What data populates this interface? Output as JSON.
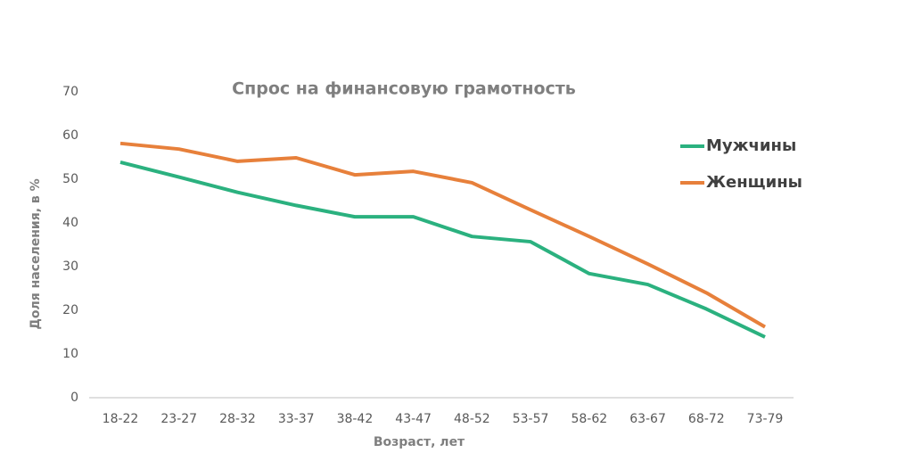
{
  "chart_data": {
    "type": "line",
    "title": "Спрос на финансовую грамотность",
    "x_label": "Возраст, лет",
    "y_label": "Доля населения, в %",
    "categories": [
      "18-22",
      "23-27",
      "28-32",
      "33-37",
      "38-42",
      "43-47",
      "48-52",
      "53-57",
      "58-62",
      "63-67",
      "68-72",
      "73-79"
    ],
    "series": [
      {
        "name": "Мужчины",
        "color": "#2bb17f",
        "values": [
          53.9,
          50.5,
          47,
          44,
          41.4,
          41.4,
          36.9,
          35.7,
          28.4,
          25.9,
          20.3,
          13.9
        ]
      },
      {
        "name": "Женщины",
        "color": "#e7803b",
        "values": [
          58.2,
          56.9,
          54.1,
          54.9,
          51,
          51.8,
          49.2,
          43,
          36.9,
          30.6,
          24,
          16.2
        ]
      }
    ],
    "ylim": [
      0,
      70
    ],
    "yticks": [
      0,
      10,
      20,
      30,
      40,
      50,
      60,
      70
    ],
    "grid": false
  }
}
